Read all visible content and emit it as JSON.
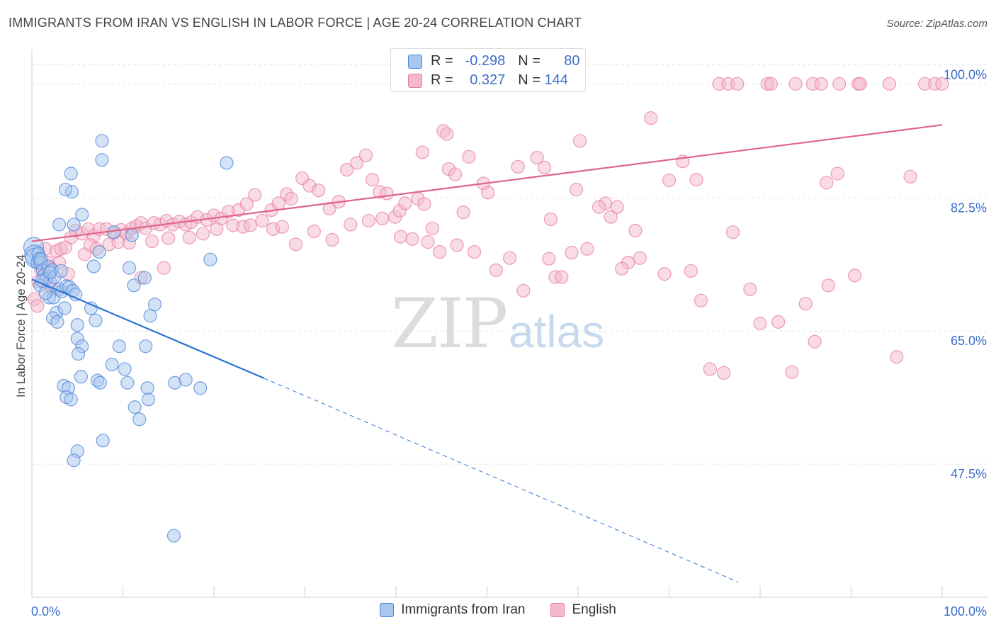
{
  "title": "IMMIGRANTS FROM IRAN VS ENGLISH IN LABOR FORCE | AGE 20-24 CORRELATION CHART",
  "source": "Source: ZipAtlas.com",
  "watermark": {
    "zip": "ZIP",
    "atlas": "atlas"
  },
  "colors": {
    "blue_fill": "#a9c6ee",
    "blue_stroke": "#4a86d8",
    "blue_line": "#2a74d4",
    "pink_fill": "#f4b8cb",
    "pink_stroke": "#e77ea0",
    "pink_line": "#e0648c",
    "tick_label": "#3b6fc9",
    "grid": "#e3e3e3"
  },
  "stats": {
    "blue": {
      "r_label": "R =",
      "r_value": "-0.298",
      "n_label": "N =",
      "n_value": "80"
    },
    "pink": {
      "r_label": "R =",
      "r_value": "0.327",
      "n_label": "N =",
      "n_value": "144"
    }
  },
  "chart_data": {
    "type": "scatter",
    "title": "IMMIGRANTS FROM IRAN VS ENGLISH IN LABOR FORCE | AGE 20-24 CORRELATION CHART",
    "xlabel": "",
    "ylabel": "In Labor Force | Age 20-24",
    "xlim": [
      0,
      100
    ],
    "ylim": [
      30,
      102
    ],
    "x_tick_labels": [
      "0.0%",
      "100.0%"
    ],
    "y_ticks": [
      47.5,
      65.0,
      82.5,
      100.0
    ],
    "y_tick_labels": [
      "47.5%",
      "65.0%",
      "82.5%",
      "100.0%"
    ],
    "grid": true,
    "legend_position": "bottom",
    "series": [
      {
        "name": "Immigrants from Iran",
        "color": "#4a86d8",
        "trend": {
          "x": [
            0,
            25.5
          ],
          "y": [
            71.8,
            58.8
          ],
          "dashed_to": [
            77.6,
            32.0
          ]
        },
        "points": [
          [
            0.2,
            76.0
          ],
          [
            0.3,
            75.0
          ],
          [
            0.4,
            74.6
          ],
          [
            0.6,
            74.0
          ],
          [
            0.7,
            75.2
          ],
          [
            0.8,
            74.5
          ],
          [
            0.9,
            74.0
          ],
          [
            1.0,
            74.4
          ],
          [
            1.2,
            73.0
          ],
          [
            1.4,
            72.4
          ],
          [
            1.6,
            71.9
          ],
          [
            1.8,
            73.5
          ],
          [
            2.0,
            71.5
          ],
          [
            2.2,
            73.0
          ],
          [
            2.5,
            72.1
          ],
          [
            0.9,
            71.0
          ],
          [
            1.1,
            71.6
          ],
          [
            1.9,
            69.4
          ],
          [
            2.4,
            69.4
          ],
          [
            2.7,
            67.4
          ],
          [
            3.0,
            70.5
          ],
          [
            3.3,
            70.2
          ],
          [
            3.6,
            68.0
          ],
          [
            3.8,
            70.9
          ],
          [
            2.3,
            66.7
          ],
          [
            2.8,
            66.2
          ],
          [
            4.1,
            70.8
          ],
          [
            4.5,
            70.3
          ],
          [
            4.8,
            69.8
          ],
          [
            6.5,
            68.0
          ],
          [
            7.0,
            66.4
          ],
          [
            5.0,
            65.8
          ],
          [
            5.0,
            64.0
          ],
          [
            5.5,
            63.0
          ],
          [
            5.1,
            62.0
          ],
          [
            5.4,
            59.0
          ],
          [
            7.2,
            58.5
          ],
          [
            7.5,
            58.2
          ],
          [
            8.8,
            60.6
          ],
          [
            9.6,
            63.0
          ],
          [
            10.2,
            60.0
          ],
          [
            10.5,
            58.2
          ],
          [
            11.3,
            55.0
          ],
          [
            11.8,
            53.4
          ],
          [
            12.7,
            57.5
          ],
          [
            12.8,
            56.0
          ],
          [
            12.5,
            63.0
          ],
          [
            13.0,
            67.0
          ],
          [
            13.5,
            68.5
          ],
          [
            15.7,
            58.2
          ],
          [
            16.9,
            58.6
          ],
          [
            18.5,
            57.5
          ],
          [
            3.5,
            57.8
          ],
          [
            4.0,
            57.5
          ],
          [
            3.8,
            56.3
          ],
          [
            4.3,
            56.0
          ],
          [
            7.8,
            50.6
          ],
          [
            5.0,
            49.2
          ],
          [
            4.6,
            48.0
          ],
          [
            15.6,
            38.1
          ],
          [
            2.0,
            72.7
          ],
          [
            3.2,
            72.9
          ],
          [
            3.0,
            79.0
          ],
          [
            4.6,
            79.0
          ],
          [
            5.5,
            80.3
          ],
          [
            4.4,
            83.3
          ],
          [
            3.7,
            83.6
          ],
          [
            4.3,
            85.7
          ],
          [
            7.7,
            87.5
          ],
          [
            7.7,
            90.0
          ],
          [
            10.7,
            73.3
          ],
          [
            12.4,
            72.0
          ],
          [
            11.2,
            71.0
          ],
          [
            7.4,
            75.4
          ],
          [
            6.8,
            73.5
          ],
          [
            11.0,
            77.6
          ],
          [
            9.0,
            78.0
          ],
          [
            19.6,
            74.4
          ],
          [
            21.4,
            87.1
          ],
          [
            1.5,
            70.0
          ]
        ]
      },
      {
        "name": "English",
        "color": "#e77ea0",
        "trend": {
          "x": [
            0,
            100
          ],
          "y": [
            76.8,
            92.1
          ]
        },
        "points": [
          [
            0.3,
            69.2
          ],
          [
            0.7,
            71.5
          ],
          [
            1.0,
            73.0
          ],
          [
            1.5,
            75.8
          ],
          [
            1.8,
            74.0
          ],
          [
            2.2,
            73.2
          ],
          [
            2.7,
            75.5
          ],
          [
            3.2,
            75.8
          ],
          [
            3.7,
            76.0
          ],
          [
            4.3,
            77.3
          ],
          [
            4.8,
            78.2
          ],
          [
            5.5,
            77.8
          ],
          [
            6.2,
            78.4
          ],
          [
            6.8,
            77.5
          ],
          [
            7.4,
            78.4
          ],
          [
            8.2,
            78.4
          ],
          [
            9.0,
            77.9
          ],
          [
            9.8,
            78.3
          ],
          [
            10.4,
            77.8
          ],
          [
            11.0,
            78.5
          ],
          [
            11.5,
            78.8
          ],
          [
            12.0,
            79.2
          ],
          [
            12.5,
            78.5
          ],
          [
            13.4,
            79.2
          ],
          [
            14.1,
            79.0
          ],
          [
            14.8,
            79.5
          ],
          [
            15.5,
            79.0
          ],
          [
            16.2,
            79.4
          ],
          [
            16.9,
            79.0
          ],
          [
            17.5,
            79.3
          ],
          [
            18.2,
            80.0
          ],
          [
            19.2,
            79.6
          ],
          [
            20.0,
            80.2
          ],
          [
            20.8,
            79.8
          ],
          [
            21.6,
            80.7
          ],
          [
            22.7,
            80.9
          ],
          [
            23.6,
            81.7
          ],
          [
            24.5,
            82.9
          ],
          [
            25.3,
            79.5
          ],
          [
            26.3,
            80.9
          ],
          [
            27.1,
            81.8
          ],
          [
            28.0,
            83.0
          ],
          [
            28.5,
            82.4
          ],
          [
            29.7,
            85.1
          ],
          [
            30.5,
            84.1
          ],
          [
            31.5,
            83.5
          ],
          [
            32.7,
            81.1
          ],
          [
            33.7,
            82.0
          ],
          [
            34.6,
            86.2
          ],
          [
            35.7,
            87.1
          ],
          [
            36.7,
            88.1
          ],
          [
            37.4,
            84.9
          ],
          [
            38.2,
            83.3
          ],
          [
            39.0,
            83.1
          ],
          [
            39.9,
            80.0
          ],
          [
            40.4,
            80.8
          ],
          [
            41.0,
            81.8
          ],
          [
            42.4,
            82.4
          ],
          [
            42.9,
            88.5
          ],
          [
            43.1,
            81.7
          ],
          [
            44.0,
            78.5
          ],
          [
            45.2,
            91.3
          ],
          [
            45.6,
            90.9
          ],
          [
            45.8,
            86.3
          ],
          [
            46.5,
            85.6
          ],
          [
            47.4,
            80.6
          ],
          [
            48.0,
            87.9
          ],
          [
            49.6,
            84.4
          ],
          [
            50.1,
            83.2
          ],
          [
            52.5,
            74.6
          ],
          [
            53.4,
            86.6
          ],
          [
            55.5,
            87.8
          ],
          [
            56.3,
            86.5
          ],
          [
            57.0,
            79.7
          ],
          [
            57.5,
            72.1
          ],
          [
            59.3,
            75.3
          ],
          [
            60.2,
            90.0
          ],
          [
            63.0,
            81.8
          ],
          [
            63.6,
            80.0
          ],
          [
            64.3,
            81.3
          ],
          [
            65.5,
            74.0
          ],
          [
            66.3,
            78.2
          ],
          [
            68.0,
            93.0
          ],
          [
            70.0,
            84.8
          ],
          [
            71.5,
            87.3
          ],
          [
            73.0,
            84.9
          ],
          [
            72.4,
            72.9
          ],
          [
            73.5,
            69.0
          ],
          [
            74.5,
            60.0
          ],
          [
            76.0,
            59.5
          ],
          [
            77.0,
            78.0
          ],
          [
            78.9,
            70.5
          ],
          [
            80.0,
            66.0
          ],
          [
            82.0,
            66.2
          ],
          [
            83.5,
            59.6
          ],
          [
            85.0,
            68.6
          ],
          [
            86.0,
            63.6
          ],
          [
            87.5,
            71.0
          ],
          [
            90.4,
            72.3
          ],
          [
            95.0,
            61.6
          ],
          [
            75.5,
            97.5
          ],
          [
            76.5,
            97.5
          ],
          [
            77.5,
            97.5
          ],
          [
            80.8,
            97.5
          ],
          [
            81.2,
            97.5
          ],
          [
            83.9,
            97.5
          ],
          [
            85.8,
            97.5
          ],
          [
            86.7,
            97.5
          ],
          [
            88.7,
            97.5
          ],
          [
            90.8,
            97.5
          ],
          [
            91.0,
            97.5
          ],
          [
            94.2,
            97.5
          ],
          [
            98.1,
            97.5
          ],
          [
            99.2,
            97.5
          ],
          [
            100.0,
            97.5
          ],
          [
            96.5,
            85.3
          ],
          [
            87.3,
            84.5
          ],
          [
            88.5,
            85.7
          ],
          [
            62.3,
            81.3
          ],
          [
            59.8,
            83.6
          ],
          [
            1.8,
            71.2
          ],
          [
            2.3,
            70.5
          ],
          [
            5.8,
            75.1
          ],
          [
            6.4,
            76.3
          ],
          [
            7.1,
            75.8
          ],
          [
            8.5,
            76.4
          ],
          [
            9.5,
            76.7
          ],
          [
            10.7,
            76.6
          ],
          [
            13.2,
            76.8
          ],
          [
            15.0,
            77.2
          ],
          [
            17.3,
            77.3
          ],
          [
            18.8,
            77.8
          ],
          [
            20.3,
            78.4
          ],
          [
            22.1,
            78.9
          ],
          [
            23.2,
            78.7
          ],
          [
            24.0,
            78.9
          ],
          [
            26.5,
            78.4
          ],
          [
            27.5,
            78.7
          ],
          [
            29.0,
            76.4
          ],
          [
            31.0,
            78.1
          ],
          [
            33.0,
            77.0
          ],
          [
            35.0,
            79.0
          ],
          [
            37.0,
            79.5
          ],
          [
            38.5,
            79.8
          ],
          [
            40.5,
            77.4
          ],
          [
            41.8,
            77.1
          ],
          [
            43.5,
            76.7
          ],
          [
            44.8,
            75.4
          ],
          [
            46.7,
            76.3
          ],
          [
            48.6,
            75.4
          ],
          [
            51.0,
            73.0
          ],
          [
            54.0,
            70.3
          ],
          [
            56.8,
            74.5
          ],
          [
            58.2,
            72.1
          ],
          [
            61.0,
            75.8
          ],
          [
            64.8,
            73.2
          ],
          [
            66.8,
            74.6
          ],
          [
            69.5,
            72.5
          ],
          [
            1.2,
            73.6
          ],
          [
            0.6,
            68.3
          ],
          [
            3.0,
            74.0
          ],
          [
            4.0,
            72.5
          ],
          [
            12.0,
            72.0
          ],
          [
            14.5,
            73.3
          ]
        ]
      }
    ]
  },
  "legend": [
    {
      "label": "Immigrants from Iran"
    },
    {
      "label": "English"
    }
  ]
}
